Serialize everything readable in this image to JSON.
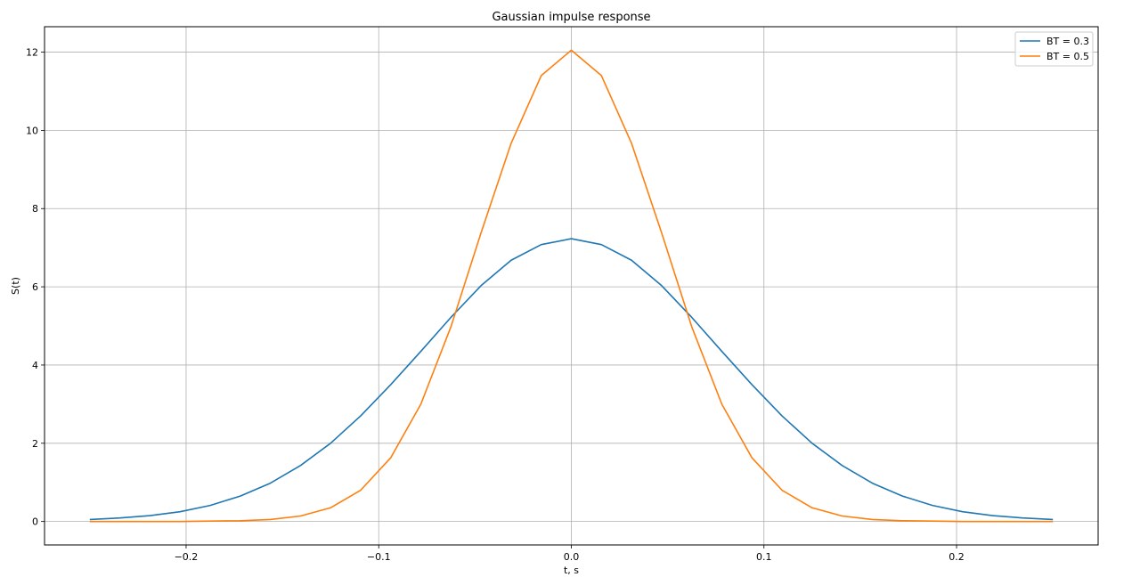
{
  "chart_data": {
    "type": "line",
    "title": "Gaussian impulse response",
    "xlabel": "t, s",
    "ylabel": "S(t)",
    "xlim": [
      -0.2735,
      0.2735
    ],
    "ylim": [
      -0.6,
      12.65
    ],
    "xticks": [
      -0.2,
      -0.1,
      0.0,
      0.1,
      0.2
    ],
    "xtick_labels": [
      "−0.2",
      "−0.1",
      "0.0",
      "0.1",
      "0.2"
    ],
    "yticks": [
      0,
      2,
      4,
      6,
      8,
      10,
      12
    ],
    "ytick_labels": [
      "0",
      "2",
      "4",
      "6",
      "8",
      "10",
      "12"
    ],
    "grid": true,
    "legend_position": "top-right",
    "x": [
      -0.25,
      -0.234375,
      -0.21875,
      -0.203125,
      -0.1875,
      -0.171875,
      -0.15625,
      -0.140625,
      -0.125,
      -0.109375,
      -0.09375,
      -0.078125,
      -0.0625,
      -0.046875,
      -0.03125,
      -0.015625,
      0.0,
      0.015625,
      0.03125,
      0.046875,
      0.0625,
      0.078125,
      0.09375,
      0.109375,
      0.125,
      0.140625,
      0.15625,
      0.171875,
      0.1875,
      0.203125,
      0.21875,
      0.234375,
      0.25
    ],
    "series": [
      {
        "name": "BT = 0.3",
        "color": "#1f77b4",
        "values": [
          0.05,
          0.09,
          0.15,
          0.25,
          0.41,
          0.65,
          0.98,
          1.43,
          2.0,
          2.7,
          3.5,
          4.35,
          5.22,
          6.03,
          6.68,
          7.08,
          7.23,
          7.08,
          6.68,
          6.03,
          5.22,
          4.35,
          3.5,
          2.7,
          2.0,
          1.43,
          0.98,
          0.65,
          0.41,
          0.25,
          0.15,
          0.09,
          0.05
        ]
      },
      {
        "name": "BT = 0.5",
        "color": "#ff7f0e",
        "values": [
          0.0,
          0.0,
          0.0,
          0.0,
          0.01,
          0.02,
          0.05,
          0.14,
          0.35,
          0.8,
          1.63,
          3.0,
          4.98,
          7.38,
          9.67,
          11.4,
          12.05,
          11.4,
          9.67,
          7.38,
          4.98,
          3.0,
          1.63,
          0.8,
          0.35,
          0.14,
          0.05,
          0.02,
          0.01,
          0.0,
          0.0,
          0.0,
          0.0
        ]
      }
    ]
  }
}
